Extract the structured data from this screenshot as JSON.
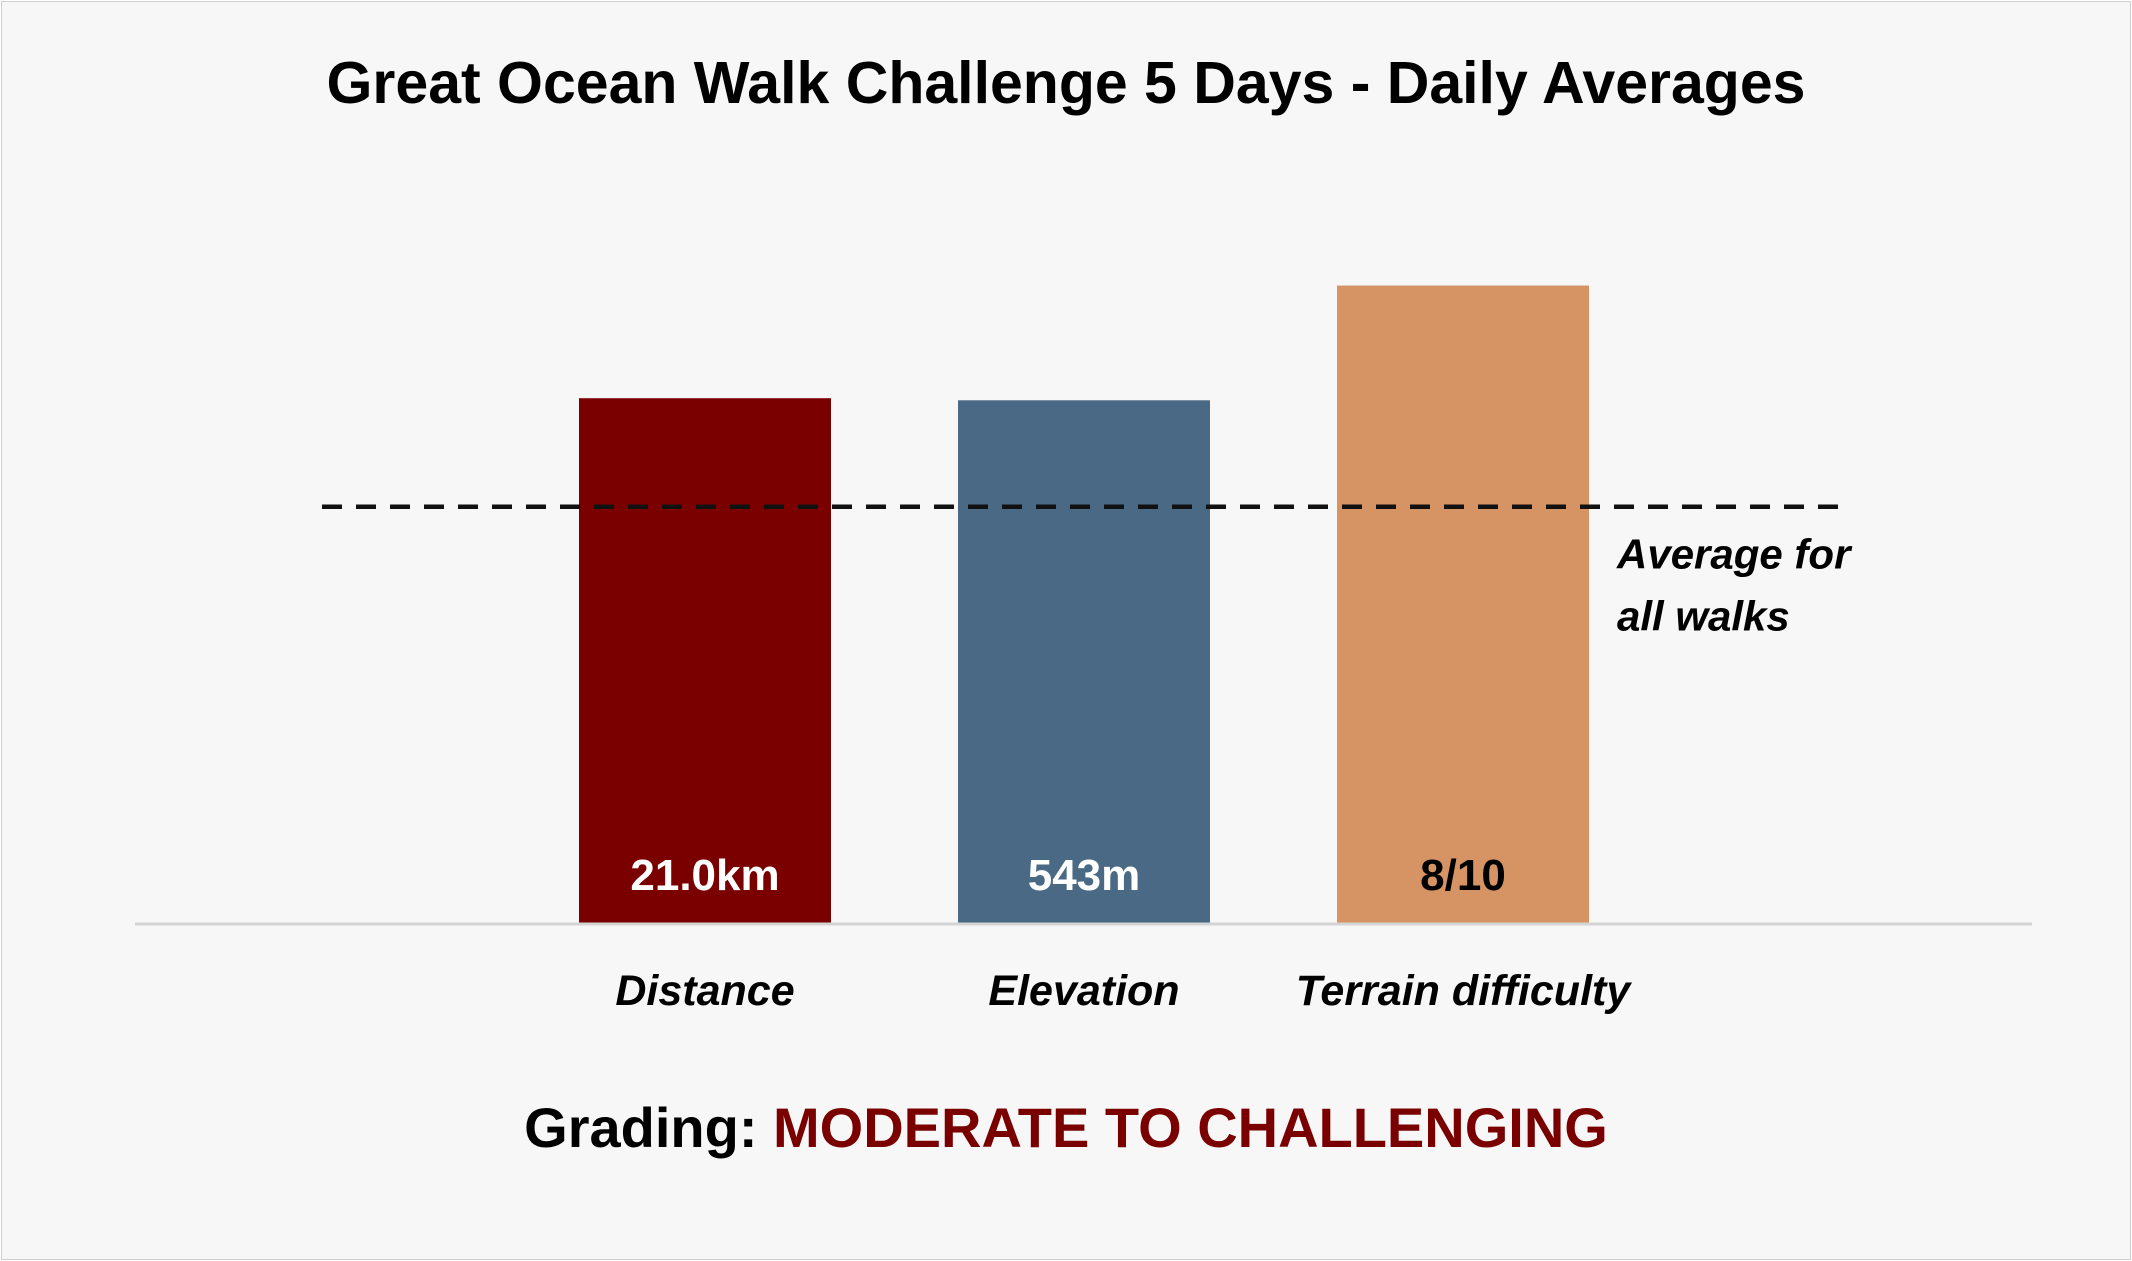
{
  "chart_data": {
    "type": "bar",
    "title": "Great Ocean Walk Challenge 5 Days - Daily Averages",
    "categories": [
      "Distance",
      "Elevation",
      "Terrain difficulty"
    ],
    "value_labels": [
      "21.0km",
      "543m",
      "8/10"
    ],
    "relative_values": [
      1.26,
      1.255,
      1.53
    ],
    "value_label_colors": [
      "#ffffff",
      "#ffffff",
      "#000000"
    ],
    "bar_colors": [
      "#7a0000",
      "#4a6985",
      "#d69465"
    ],
    "reference_line": {
      "value": 1.0,
      "label_lines": [
        "Average for",
        "all walks"
      ],
      "style": "dashed"
    },
    "ylim": [
      0,
      1.85
    ],
    "xlabel": "",
    "ylabel": "",
    "grid": false,
    "legend": "none"
  },
  "grading": {
    "prefix": "Grading: ",
    "value": "MODERATE TO CHALLENGING",
    "value_color": "#7a0000"
  }
}
